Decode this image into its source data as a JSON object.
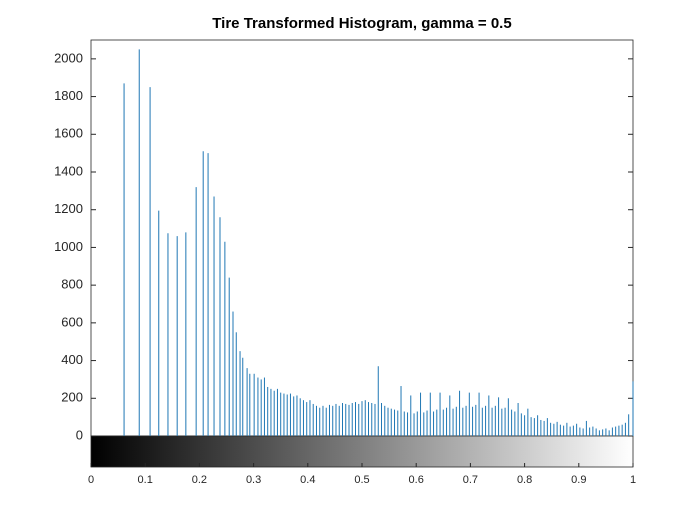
{
  "chart_data": {
    "type": "stem",
    "title": "Tire Transformed Histogram, gamma = 0.5",
    "color": "#1f77b4",
    "x": [
      0.061,
      0.089,
      0.109,
      0.125,
      0.142,
      0.159,
      0.175,
      0.194,
      0.207,
      0.216,
      0.227,
      0.238,
      0.247,
      0.255,
      0.262,
      0.268,
      0.275,
      0.28,
      0.288,
      0.293,
      0.301,
      0.308,
      0.314,
      0.32,
      0.326,
      0.332,
      0.338,
      0.344,
      0.35,
      0.356,
      0.362,
      0.368,
      0.374,
      0.38,
      0.386,
      0.392,
      0.398,
      0.404,
      0.41,
      0.416,
      0.422,
      0.428,
      0.434,
      0.44,
      0.446,
      0.452,
      0.458,
      0.464,
      0.47,
      0.476,
      0.482,
      0.488,
      0.494,
      0.5,
      0.506,
      0.512,
      0.518,
      0.524,
      0.53,
      0.536,
      0.542,
      0.548,
      0.554,
      0.56,
      0.566,
      0.572,
      0.578,
      0.584,
      0.59,
      0.596,
      0.602,
      0.608,
      0.614,
      0.62,
      0.626,
      0.632,
      0.638,
      0.644,
      0.65,
      0.656,
      0.662,
      0.668,
      0.674,
      0.68,
      0.686,
      0.692,
      0.698,
      0.704,
      0.71,
      0.716,
      0.722,
      0.728,
      0.734,
      0.74,
      0.746,
      0.752,
      0.758,
      0.764,
      0.77,
      0.776,
      0.782,
      0.788,
      0.794,
      0.8,
      0.806,
      0.812,
      0.818,
      0.824,
      0.83,
      0.836,
      0.842,
      0.848,
      0.854,
      0.86,
      0.866,
      0.872,
      0.878,
      0.884,
      0.89,
      0.896,
      0.902,
      0.908,
      0.914,
      0.92,
      0.926,
      0.932,
      0.938,
      0.944,
      0.95,
      0.956,
      0.962,
      0.968,
      0.974,
      0.98,
      0.986,
      0.992,
      1.0
    ],
    "values": [
      1870,
      2050,
      1850,
      1195,
      1075,
      1060,
      1080,
      1320,
      1510,
      1500,
      1270,
      1160,
      1030,
      840,
      660,
      550,
      450,
      415,
      360,
      330,
      330,
      310,
      300,
      310,
      260,
      250,
      240,
      250,
      230,
      225,
      220,
      225,
      210,
      215,
      200,
      190,
      180,
      190,
      170,
      160,
      150,
      160,
      150,
      165,
      160,
      170,
      160,
      175,
      170,
      165,
      175,
      180,
      170,
      185,
      190,
      180,
      175,
      170,
      370,
      175,
      160,
      150,
      145,
      140,
      135,
      265,
      130,
      125,
      215,
      120,
      130,
      230,
      125,
      135,
      230,
      130,
      140,
      230,
      140,
      150,
      215,
      145,
      155,
      240,
      150,
      160,
      230,
      155,
      165,
      230,
      150,
      160,
      215,
      150,
      160,
      205,
      145,
      150,
      200,
      140,
      130,
      175,
      120,
      110,
      145,
      100,
      95,
      110,
      85,
      80,
      95,
      70,
      65,
      75,
      60,
      55,
      70,
      50,
      55,
      65,
      45,
      40,
      80,
      45,
      50,
      40,
      30,
      35,
      40,
      30,
      45,
      50,
      55,
      60,
      70,
      115,
      290
    ],
    "xlim": [
      0,
      1
    ],
    "xticks": [
      0,
      0.1,
      0.2,
      0.3,
      0.4,
      0.5,
      0.6,
      0.7,
      0.8,
      0.9,
      1
    ],
    "ylim": [
      0,
      2100
    ],
    "yticks": [
      0,
      200,
      400,
      600,
      800,
      1000,
      1200,
      1400,
      1600,
      1800,
      2000
    ],
    "grid": false
  }
}
